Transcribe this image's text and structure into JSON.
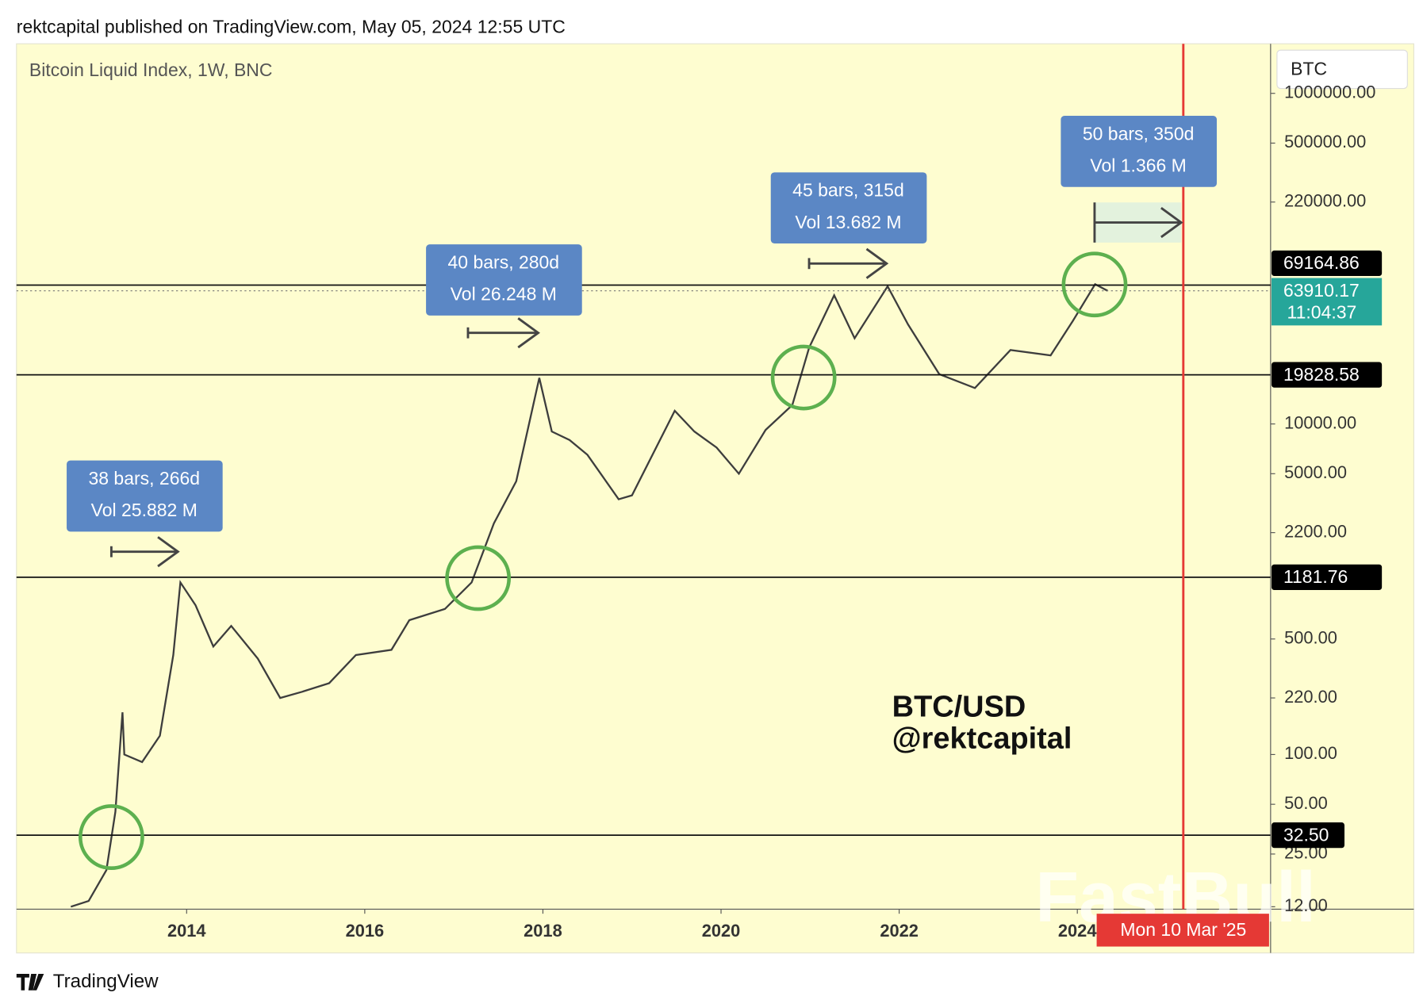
{
  "header": "rektcapital published on TradingView.com, May 05, 2024 12:55 UTC",
  "footer": "TradingView",
  "symbol_box": "BTC",
  "watermark": "FastBull",
  "chart_data": {
    "type": "line",
    "title": "Bitcoin Liquid Index, 1W, BNC",
    "log_scale": true,
    "color": "#3d3d3d",
    "x": [
      2012.7,
      2012.9,
      2013.1,
      2013.2,
      2013.28,
      2013.3,
      2013.5,
      2013.7,
      2013.85,
      2013.93,
      2014.1,
      2014.3,
      2014.5,
      2014.8,
      2015.05,
      2015.3,
      2015.6,
      2015.9,
      2016.3,
      2016.5,
      2016.9,
      2017.2,
      2017.45,
      2017.7,
      2017.96,
      2018.1,
      2018.3,
      2018.5,
      2018.85,
      2019.0,
      2019.48,
      2019.7,
      2019.95,
      2020.2,
      2020.5,
      2020.8,
      2020.99,
      2021.27,
      2021.5,
      2021.87,
      2022.1,
      2022.45,
      2022.85,
      2023.25,
      2023.7,
      2023.95,
      2024.2,
      2024.34
    ],
    "values": [
      12,
      13,
      20,
      45,
      180,
      100,
      90,
      130,
      400,
      1100,
      800,
      450,
      600,
      380,
      220,
      240,
      270,
      400,
      430,
      650,
      760,
      1100,
      2500,
      4500,
      19000,
      9000,
      8000,
      6500,
      3500,
      3700,
      12000,
      9000,
      7200,
      5000,
      9200,
      13000,
      29000,
      60000,
      33000,
      68000,
      40000,
      20000,
      16500,
      28000,
      26000,
      42000,
      70000,
      63910
    ],
    "xlim": [
      2012.09,
      2026.17
    ],
    "xticks": [
      2014,
      2016,
      2018,
      2020,
      2022,
      2024
    ],
    "ylim": [
      11.6,
      1995000
    ],
    "yticks": [
      {
        "value": 1000000,
        "label": "1000000.00"
      },
      {
        "value": 500000,
        "label": "500000.00"
      },
      {
        "value": 220000,
        "label": "220000.00"
      },
      {
        "value": 10000,
        "label": "10000.00"
      },
      {
        "value": 5000,
        "label": "5000.00"
      },
      {
        "value": 2200,
        "label": "2200.00"
      },
      {
        "value": 500,
        "label": "500.00"
      },
      {
        "value": 220,
        "label": "220.00"
      },
      {
        "value": 100,
        "label": "100.00"
      },
      {
        "value": 50,
        "label": "50.00"
      },
      {
        "value": 25,
        "label": "25.00"
      },
      {
        "value": 12,
        "label": "12.00"
      }
    ],
    "levels": [
      69164.86,
      19828.58,
      1181.76,
      {
        "value": 32.5,
        "label": "32.50"
      }
    ],
    "current_price": 63910.17,
    "countdown": "11:04:37",
    "vertical_marker": {
      "value": 2025.19,
      "label": "Mon 10 Mar '25"
    },
    "measurements": [
      {
        "bars": "38 bars, 266d",
        "volume": "Vol 25.882 M"
      },
      {
        "bars": "40 bars, 280d",
        "volume": "Vol 26.248 M"
      },
      {
        "bars": "45 bars, 315d",
        "volume": "Vol 13.682 M"
      },
      {
        "bars": "50 bars, 350d",
        "volume": "Vol 1.366 M"
      }
    ],
    "annotation_lines": [
      "BTC/USD",
      "@rektcapital"
    ]
  }
}
